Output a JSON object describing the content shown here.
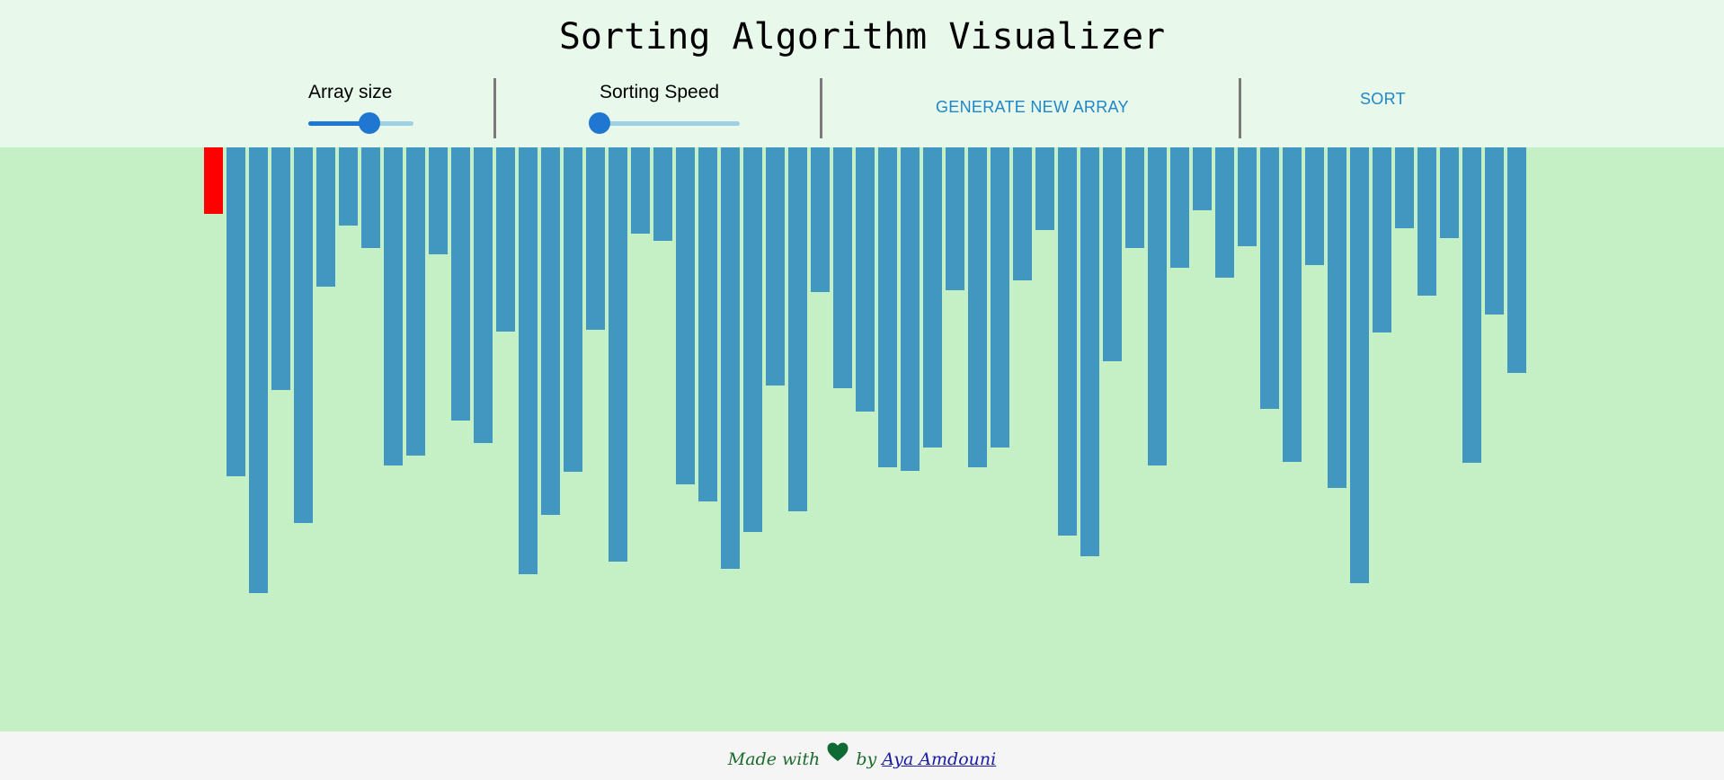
{
  "header": {
    "title": "Sorting Algorithm Visualizer"
  },
  "controls": {
    "array_size": {
      "label": "Array size",
      "value_fraction": 0.58
    },
    "sorting_speed": {
      "label": "Sorting Speed",
      "value_fraction": 0.0
    },
    "generate_label": "GENERATE NEW ARRAY",
    "sort_label": "SORT"
  },
  "colors": {
    "header_bg": "#e8f8eb",
    "area_bg": "#c5f0c5",
    "bar": "#4297c0",
    "bar_active": "#ff0000",
    "slider": "#1f77d2",
    "button_text": "#1f86c8",
    "footer_text": "#1d6b2c"
  },
  "array": {
    "values": [
      74,
      366,
      496,
      270,
      418,
      155,
      87,
      112,
      354,
      343,
      119,
      304,
      329,
      205,
      475,
      409,
      361,
      203,
      461,
      96,
      104,
      375,
      394,
      469,
      428,
      265,
      405,
      161,
      268,
      294,
      356,
      360,
      334,
      159,
      356,
      334,
      148,
      92,
      432,
      455,
      238,
      112,
      354,
      134,
      70,
      145,
      110,
      291,
      350,
      131,
      379,
      485,
      206,
      90,
      165,
      101,
      351,
      186,
      251
    ],
    "active_index": 0
  },
  "footer": {
    "made_with": "Made with",
    "by": "by",
    "author": "Aya Amdouni",
    "heart_icon": "heart-icon"
  }
}
